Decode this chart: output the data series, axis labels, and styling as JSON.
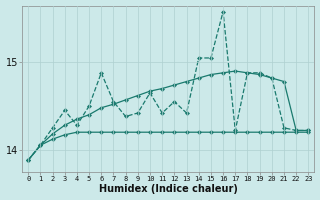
{
  "xlabel": "Humidex (Indice chaleur)",
  "background_color": "#cce9e9",
  "line_color": "#1a7a6e",
  "grid_color": "#b8d8d8",
  "xlim": [
    -0.5,
    23.5
  ],
  "ylim": [
    13.75,
    15.65
  ],
  "yticks": [
    14,
    15
  ],
  "xticks": [
    0,
    1,
    2,
    3,
    4,
    5,
    6,
    7,
    8,
    9,
    10,
    11,
    12,
    13,
    14,
    15,
    16,
    17,
    18,
    19,
    20,
    21,
    22,
    23
  ],
  "series_flat_x": [
    0,
    1,
    2,
    3,
    4,
    5,
    6,
    7,
    8,
    9,
    10,
    11,
    12,
    13,
    14,
    15,
    16,
    17,
    18,
    19,
    20,
    21,
    22,
    23
  ],
  "series_flat_y": [
    13.88,
    14.05,
    14.12,
    14.17,
    14.2,
    14.2,
    14.2,
    14.2,
    14.2,
    14.2,
    14.2,
    14.2,
    14.2,
    14.2,
    14.2,
    14.2,
    14.2,
    14.2,
    14.2,
    14.2,
    14.2,
    14.2,
    14.2,
    14.2
  ],
  "series_linear_x": [
    0,
    1,
    2,
    3,
    4,
    5,
    6,
    7,
    8,
    9,
    10,
    11,
    12,
    13,
    14,
    15,
    16,
    17,
    18,
    19,
    20,
    21,
    22,
    23
  ],
  "series_linear_y": [
    13.88,
    14.05,
    14.18,
    14.28,
    14.35,
    14.4,
    14.48,
    14.52,
    14.57,
    14.62,
    14.67,
    14.7,
    14.74,
    14.78,
    14.82,
    14.86,
    14.88,
    14.9,
    14.88,
    14.86,
    14.82,
    14.78,
    14.22,
    14.22
  ],
  "series_zigzag_x": [
    0,
    1,
    2,
    3,
    4,
    5,
    6,
    7,
    8,
    9,
    10,
    11,
    12,
    13,
    14,
    15,
    16,
    17,
    18,
    19,
    20,
    21,
    22,
    23
  ],
  "series_zigzag_y": [
    13.88,
    14.05,
    14.25,
    14.45,
    14.28,
    14.5,
    14.88,
    14.55,
    14.38,
    14.42,
    14.65,
    14.42,
    14.55,
    14.42,
    15.05,
    15.05,
    15.58,
    14.22,
    14.88,
    14.88,
    14.82,
    14.25,
    14.22,
    14.22
  ]
}
